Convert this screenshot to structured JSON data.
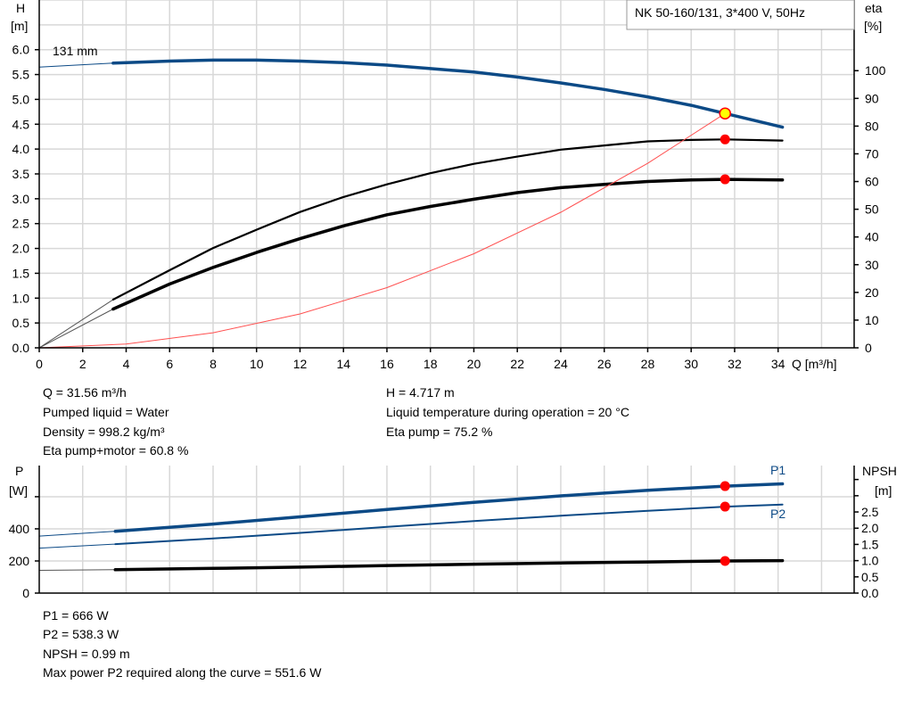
{
  "legend_box": "NK 50-160/131, 3*400 V, 50Hz",
  "colors": {
    "head": "#0c4a86",
    "efficiency": "#000000",
    "system": "#ff5050",
    "duty_marker": "#ff0000",
    "duty_fill": "#ffff00",
    "power": "#0c4a86",
    "npsh": "#000000"
  },
  "chart_data": [
    {
      "type": "line",
      "title": "",
      "xlabel": "Q [m³/h]",
      "ylabel_left": [
        "H",
        "[m]"
      ],
      "ylabel_right": [
        "eta",
        "[%]"
      ],
      "xlim": [
        0,
        37.5
      ],
      "ylim_left": [
        0,
        7
      ],
      "ylim_right": [
        0,
        125.5
      ],
      "x_ticks": [
        0,
        2,
        4,
        6,
        8,
        10,
        12,
        14,
        16,
        18,
        20,
        22,
        24,
        26,
        28,
        30,
        32,
        34
      ],
      "y_ticks_left": [
        "0.0",
        "0.5",
        "1.0",
        "1.5",
        "2.0",
        "2.5",
        "3.0",
        "3.5",
        "4.0",
        "4.5",
        "5.0",
        "5.5",
        "6.0"
      ],
      "y_ticks_right": [
        "0",
        "10",
        "20",
        "30",
        "40",
        "50",
        "60",
        "70",
        "80",
        "90",
        "100"
      ],
      "grid": true,
      "operating_range": [
        3.4,
        34.2
      ],
      "curve_label": "131 mm",
      "series": [
        {
          "id": "head",
          "axis": "left",
          "points": [
            [
              0,
              5.65
            ],
            [
              3.4,
              5.73
            ],
            [
              4,
              5.74
            ],
            [
              6,
              5.77
            ],
            [
              8,
              5.79
            ],
            [
              10,
              5.79
            ],
            [
              12,
              5.77
            ],
            [
              14,
              5.74
            ],
            [
              16,
              5.69
            ],
            [
              18,
              5.62
            ],
            [
              20,
              5.55
            ],
            [
              22,
              5.45
            ],
            [
              24,
              5.33
            ],
            [
              26,
              5.2
            ],
            [
              28,
              5.05
            ],
            [
              30,
              4.88
            ],
            [
              31.56,
              4.717
            ],
            [
              34.2,
              4.44
            ]
          ]
        },
        {
          "id": "eta-pump",
          "axis": "right",
          "points": [
            [
              0,
              0
            ],
            [
              3.4,
              17.4
            ],
            [
              6,
              28
            ],
            [
              8,
              36
            ],
            [
              10,
              42.6
            ],
            [
              12,
              49
            ],
            [
              14,
              54.4
            ],
            [
              16,
              59
            ],
            [
              18,
              63
            ],
            [
              20,
              66.4
            ],
            [
              22,
              69
            ],
            [
              24,
              71.5
            ],
            [
              26,
              73
            ],
            [
              28,
              74.5
            ],
            [
              30,
              75
            ],
            [
              31.56,
              75.2
            ],
            [
              34.2,
              74.8
            ]
          ]
        },
        {
          "id": "eta-pump-motor",
          "axis": "right",
          "points": [
            [
              0,
              0
            ],
            [
              3.4,
              14
            ],
            [
              6,
              23
            ],
            [
              8,
              29
            ],
            [
              10,
              34.4
            ],
            [
              12,
              39.4
            ],
            [
              14,
              44
            ],
            [
              16,
              48
            ],
            [
              18,
              51
            ],
            [
              20,
              53.6
            ],
            [
              22,
              56
            ],
            [
              24,
              57.8
            ],
            [
              26,
              59
            ],
            [
              28,
              60
            ],
            [
              30,
              60.6
            ],
            [
              31.56,
              60.8
            ],
            [
              34.2,
              60.6
            ]
          ]
        },
        {
          "id": "system-curve",
          "axis": "left",
          "points": [
            [
              0,
              0
            ],
            [
              4,
              0.076
            ],
            [
              8,
              0.303
            ],
            [
              12,
              0.682
            ],
            [
              16,
              1.212
            ],
            [
              20,
              1.894
            ],
            [
              24,
              2.728
            ],
            [
              28,
              3.713
            ],
            [
              31.56,
              4.717
            ]
          ]
        }
      ],
      "duty_points": [
        {
          "series": "head",
          "q": 31.56,
          "value": 4.717
        },
        {
          "series": "eta-pump",
          "q": 31.56,
          "value": 75.2
        },
        {
          "series": "eta-pump-motor",
          "q": 31.56,
          "value": 60.8
        }
      ]
    },
    {
      "type": "line",
      "title": "",
      "ylabel_left": [
        "P",
        "[W]"
      ],
      "ylabel_right": [
        "NPSH",
        "[m]"
      ],
      "xlim": [
        0,
        37.5
      ],
      "ylim_left": [
        0,
        794
      ],
      "ylim_right": [
        0,
        3.93
      ],
      "y_ticks_left": [
        "0",
        "200",
        "400"
      ],
      "y_ticks_right": [
        "0.0",
        "0.5",
        "1.0",
        "1.5",
        "2.0",
        "2.5"
      ],
      "grid": true,
      "operating_range": [
        3.5,
        34.2
      ],
      "series": [
        {
          "id": "P1",
          "name": "P1",
          "axis": "left",
          "points": [
            [
              0,
              355
            ],
            [
              3.5,
              385
            ],
            [
              8,
              430
            ],
            [
              12,
              475
            ],
            [
              16,
              520
            ],
            [
              20,
              565
            ],
            [
              24,
              605
            ],
            [
              28,
              640
            ],
            [
              31.56,
              666
            ],
            [
              34.2,
              680
            ]
          ]
        },
        {
          "id": "P2",
          "name": "P2",
          "axis": "left",
          "points": [
            [
              0,
              280
            ],
            [
              3.5,
              305
            ],
            [
              8,
              340
            ],
            [
              12,
              375
            ],
            [
              16,
              412
            ],
            [
              20,
              448
            ],
            [
              24,
              482
            ],
            [
              28,
              512
            ],
            [
              31.56,
              538.3
            ],
            [
              34.2,
              551.6
            ]
          ]
        },
        {
          "id": "NPSH",
          "axis": "right",
          "points": [
            [
              0,
              0.7
            ],
            [
              3.5,
              0.72
            ],
            [
              8,
              0.76
            ],
            [
              12,
              0.8
            ],
            [
              16,
              0.85
            ],
            [
              20,
              0.89
            ],
            [
              24,
              0.93
            ],
            [
              28,
              0.96
            ],
            [
              31.56,
              0.99
            ],
            [
              34.2,
              1.0
            ]
          ]
        }
      ],
      "duty_points": [
        {
          "series": "P1",
          "q": 31.56,
          "value": 666
        },
        {
          "series": "P2",
          "q": 31.56,
          "value": 538.3
        },
        {
          "series": "NPSH",
          "q": 31.56,
          "value": 0.99
        }
      ]
    }
  ],
  "info_upper": {
    "left": [
      "Q = 31.56 m³/h",
      "Pumped liquid = Water",
      "Density = 998.2 kg/m³",
      "Eta pump+motor = 60.8 %"
    ],
    "right": [
      "H = 4.717 m",
      "Liquid temperature during operation = 20 °C",
      "Eta pump = 75.2 %"
    ]
  },
  "info_lower": [
    "P1 = 666 W",
    "P2 = 538.3 W",
    "NPSH = 0.99 m",
    "Max power P2 required along the curve = 551.6 W"
  ]
}
